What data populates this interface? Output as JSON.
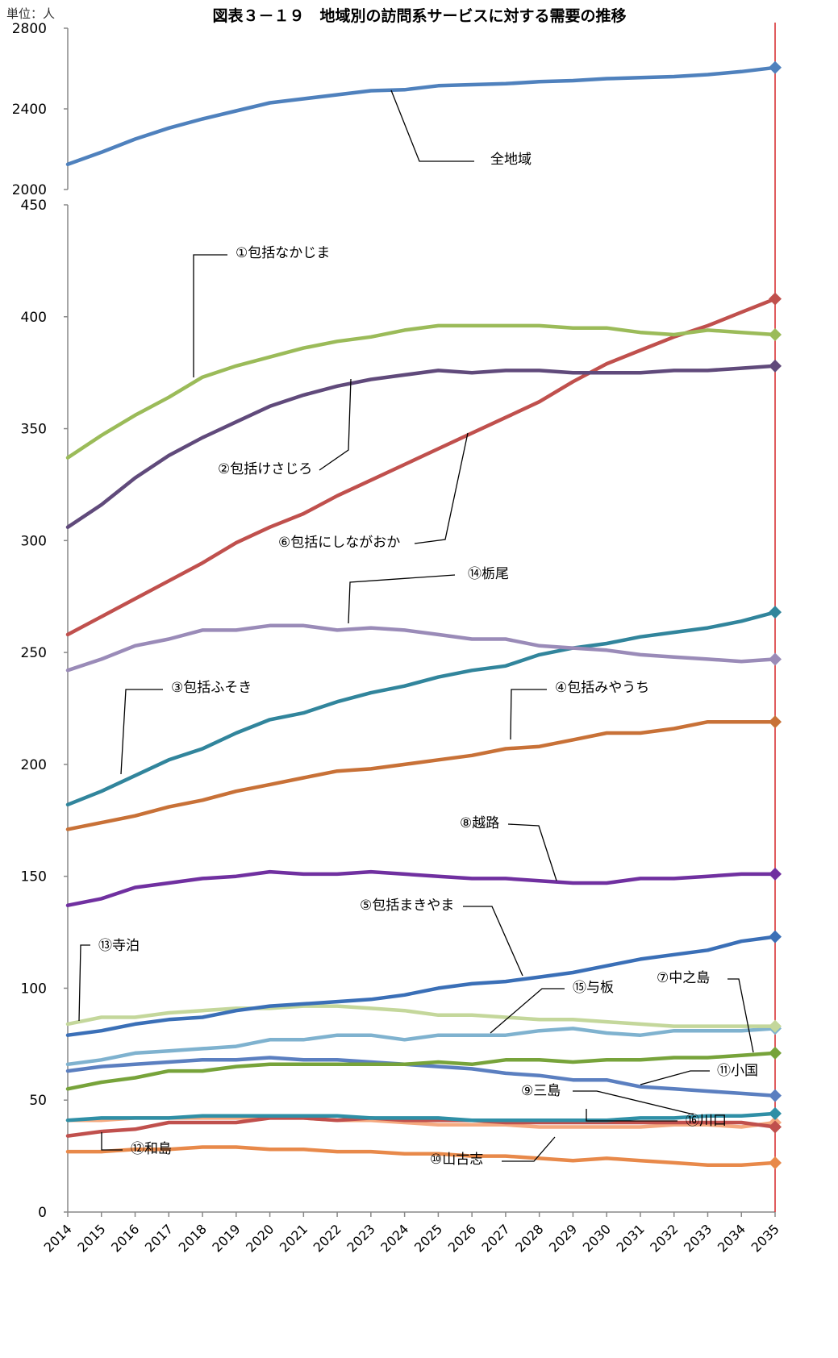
{
  "chart_data": {
    "type": "line",
    "title": "図表３－１９　地域別の訪問系サービスに対する需要の推移",
    "unit_label": "単位：人",
    "x": [
      2014,
      2015,
      2016,
      2017,
      2018,
      2019,
      2020,
      2021,
      2022,
      2023,
      2024,
      2025,
      2026,
      2027,
      2028,
      2029,
      2030,
      2031,
      2032,
      2033,
      2034,
      2035
    ],
    "upper_panel": {
      "ylim": [
        2000,
        2800
      ],
      "ticks": [
        2000,
        2400,
        2800
      ],
      "series": [
        {
          "name": "全地域",
          "color": "#4f81bd",
          "values": [
            2125,
            2185,
            2250,
            2305,
            2350,
            2390,
            2430,
            2450,
            2470,
            2490,
            2495,
            2515,
            2520,
            2525,
            2535,
            2540,
            2550,
            2555,
            2560,
            2570,
            2585,
            2605
          ]
        }
      ]
    },
    "lower_panel": {
      "ylim": [
        0,
        450
      ],
      "ticks": [
        0,
        50,
        100,
        150,
        200,
        250,
        300,
        350,
        400,
        450
      ],
      "series": [
        {
          "name": "①包括なかじま",
          "color": "#9bbb59",
          "light": true,
          "values": [
            337,
            347,
            356,
            364,
            373,
            378,
            382,
            386,
            389,
            391,
            394,
            396,
            396,
            396,
            396,
            395,
            395,
            393,
            392,
            394,
            393,
            392
          ]
        },
        {
          "name": "②包括けさじろ",
          "color": "#604a7b",
          "values": [
            306,
            316,
            328,
            338,
            346,
            353,
            360,
            365,
            369,
            372,
            374,
            376,
            375,
            376,
            376,
            375,
            375,
            375,
            376,
            376,
            377,
            378
          ]
        },
        {
          "name": "⑥包括にしながおか",
          "color": "#c0504d",
          "values": [
            258,
            266,
            274,
            282,
            290,
            299,
            306,
            312,
            320,
            327,
            334,
            341,
            348,
            355,
            362,
            371,
            379,
            385,
            391,
            396,
            402,
            408
          ]
        },
        {
          "name": "⑭栃尾",
          "color": "#9a8bb8",
          "values": [
            242,
            247,
            253,
            256,
            260,
            260,
            262,
            262,
            260,
            261,
            260,
            258,
            256,
            256,
            253,
            252,
            251,
            249,
            248,
            247,
            246,
            247
          ]
        },
        {
          "name": "③包括ふそき",
          "color": "#31859c",
          "values": [
            182,
            188,
            195,
            202,
            207,
            214,
            220,
            223,
            228,
            232,
            235,
            239,
            242,
            244,
            249,
            252,
            254,
            257,
            259,
            261,
            264,
            268
          ]
        },
        {
          "name": "④包括みやうち",
          "color": "#c87137",
          "values": [
            171,
            174,
            177,
            181,
            184,
            188,
            191,
            194,
            197,
            198,
            200,
            202,
            204,
            207,
            208,
            211,
            214,
            214,
            216,
            219,
            219,
            219
          ]
        },
        {
          "name": "⑧越路",
          "color": "#7030a0",
          "values": [
            137,
            140,
            145,
            147,
            149,
            150,
            152,
            151,
            151,
            152,
            151,
            150,
            149,
            149,
            148,
            147,
            147,
            149,
            149,
            150,
            151,
            151
          ]
        },
        {
          "name": "⑤包括まきやま",
          "color": "#3a6fb7",
          "values": [
            79,
            81,
            84,
            86,
            87,
            90,
            92,
            93,
            94,
            95,
            97,
            100,
            102,
            103,
            105,
            107,
            110,
            113,
            115,
            117,
            121,
            123
          ]
        },
        {
          "name": "⑬寺泊",
          "color": "#c4d79b",
          "values": [
            84,
            87,
            87,
            89,
            90,
            91,
            91,
            92,
            92,
            91,
            90,
            88,
            88,
            87,
            86,
            86,
            85,
            84,
            83,
            83,
            83,
            83
          ]
        },
        {
          "name": "⑮与板",
          "color": "#7fb2cf",
          "values": [
            66,
            68,
            71,
            72,
            73,
            74,
            77,
            77,
            79,
            79,
            77,
            79,
            79,
            79,
            81,
            82,
            80,
            79,
            81,
            81,
            81,
            82
          ]
        },
        {
          "name": "⑦中之島",
          "color": "#77a33a",
          "values": [
            55,
            58,
            60,
            63,
            63,
            65,
            66,
            66,
            66,
            66,
            66,
            67,
            66,
            68,
            68,
            67,
            68,
            68,
            69,
            69,
            70,
            71
          ]
        },
        {
          "name": "⑪小国",
          "color": "#5b7fc0",
          "values": [
            63,
            65,
            66,
            67,
            68,
            68,
            69,
            68,
            68,
            67,
            66,
            65,
            64,
            62,
            61,
            59,
            59,
            56,
            55,
            54,
            53,
            52
          ]
        },
        {
          "name": "⑨三島",
          "color": "#2f8fa6",
          "values": [
            41,
            42,
            42,
            42,
            43,
            43,
            43,
            43,
            43,
            42,
            42,
            42,
            41,
            41,
            41,
            41,
            41,
            42,
            42,
            43,
            43,
            44
          ]
        },
        {
          "name": "⑯川口",
          "color": "#c0504d",
          "values": [
            34,
            36,
            37,
            40,
            40,
            40,
            42,
            42,
            41,
            42,
            41,
            41,
            41,
            40,
            40,
            40,
            40,
            40,
            40,
            40,
            40,
            38
          ]
        },
        {
          "name": "⑩山古志",
          "color": "#f5a97f",
          "values": [
            41,
            41,
            42,
            42,
            42,
            42,
            42,
            42,
            41,
            41,
            40,
            39,
            39,
            39,
            38,
            38,
            38,
            38,
            39,
            39,
            38,
            40
          ]
        },
        {
          "name": "⑫和島",
          "color": "#e8894a",
          "values": [
            27,
            27,
            28,
            28,
            29,
            29,
            28,
            28,
            27,
            27,
            26,
            26,
            25,
            25,
            24,
            23,
            24,
            23,
            22,
            21,
            21,
            22
          ]
        }
      ]
    },
    "xlabel": "",
    "ylabel": "",
    "grid": false,
    "reference_line": {
      "x": 2035,
      "color": "#d62728"
    }
  }
}
